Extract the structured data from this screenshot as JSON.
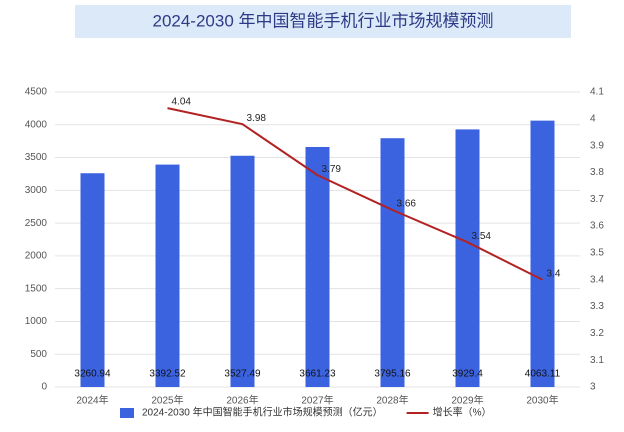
{
  "chart_data": {
    "type": "bar",
    "title": "2024-2030 年中国智能手机行业市场规模预测",
    "categories": [
      "2024年",
      "2025年",
      "2026年",
      "2027年",
      "2028年",
      "2029年",
      "2030年"
    ],
    "series": [
      {
        "name": "2024-2030 年中国智能手机行业市场规模预测（亿元）",
        "type": "bar",
        "color": "#3b63e0",
        "values": [
          3260.94,
          3392.52,
          3527.49,
          3661.23,
          3795.16,
          3929.4,
          4063.11
        ]
      },
      {
        "name": "增长率（%）",
        "type": "line",
        "axis": "y2",
        "color": "#b22222",
        "values": [
          null,
          4.04,
          3.98,
          3.79,
          3.66,
          3.54,
          3.4
        ]
      }
    ],
    "ylim": [
      0,
      4500
    ],
    "yticks": [
      0,
      500,
      1000,
      1500,
      2000,
      2500,
      3000,
      3500,
      4000,
      4500
    ],
    "y2lim": [
      3,
      4.1
    ],
    "y2ticks": [
      3,
      3.1,
      3.2,
      3.3,
      3.4,
      3.5,
      3.6,
      3.7,
      3.8,
      3.9,
      4,
      4.1
    ],
    "grid": true,
    "legend": "bottom"
  }
}
